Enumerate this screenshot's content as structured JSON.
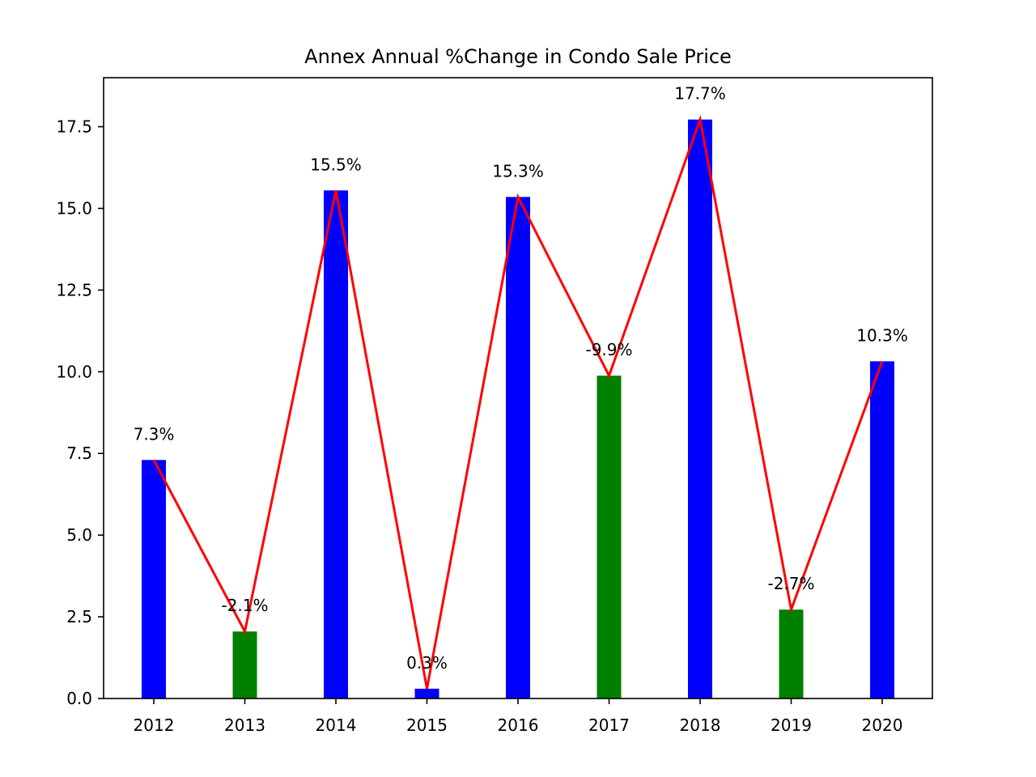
{
  "chart_data": {
    "type": "bar",
    "title": "Annex Annual %Change in Condo Sale Price",
    "xlabel": "",
    "ylabel": "",
    "categories": [
      "2012",
      "2013",
      "2014",
      "2015",
      "2016",
      "2017",
      "2018",
      "2019",
      "2020"
    ],
    "values": [
      7.3,
      2.05,
      15.55,
      0.3,
      15.35,
      9.88,
      17.72,
      2.72,
      10.32
    ],
    "labels": [
      "7.3%",
      "-2.1%",
      "15.5%",
      "0.3%",
      "15.3%",
      "-9.9%",
      "17.7%",
      "-2.7%",
      "10.3%"
    ],
    "bar_colors": [
      "#0000ff",
      "#008000",
      "#0000ff",
      "#0000ff",
      "#0000ff",
      "#008000",
      "#0000ff",
      "#008000",
      "#0000ff"
    ],
    "line_color": "#ff0000",
    "overlay": "line connecting bar tops",
    "ylim": [
      0,
      19
    ],
    "yticks": [
      0.0,
      2.5,
      5.0,
      7.5,
      10.0,
      12.5,
      15.0,
      17.5
    ],
    "ytick_labels": [
      "0.0",
      "2.5",
      "5.0",
      "7.5",
      "10.0",
      "12.5",
      "15.0",
      "17.5"
    ],
    "grid": false,
    "legend": "none"
  }
}
